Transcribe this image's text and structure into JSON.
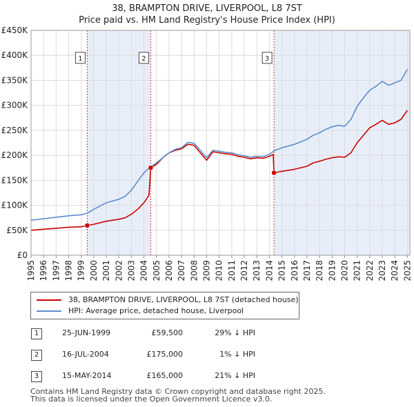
{
  "chart_data": {
    "type": "line",
    "title": "38, BRAMPTON DRIVE, LIVERPOOL, L8 7ST",
    "subtitle": "Price paid vs. HM Land Registry's House Price Index (HPI)",
    "xlabel": "",
    "ylabel": "",
    "xlim": [
      1995,
      2025.2
    ],
    "ylim": [
      0,
      450000
    ],
    "yticks": [
      0,
      50000,
      100000,
      150000,
      200000,
      250000,
      300000,
      350000,
      400000,
      450000
    ],
    "ytick_labels": [
      "£0",
      "£50K",
      "£100K",
      "£150K",
      "£200K",
      "£250K",
      "£300K",
      "£350K",
      "£400K",
      "£450K"
    ],
    "xticks": [
      "1995",
      "1996",
      "1997",
      "1998",
      "1999",
      "2000",
      "2001",
      "2002",
      "2003",
      "2004",
      "2005",
      "2006",
      "2007",
      "2008",
      "2009",
      "2010",
      "2011",
      "2012",
      "2013",
      "2014",
      "2015",
      "2016",
      "2017",
      "2018",
      "2019",
      "2020",
      "2021",
      "2022",
      "2023",
      "2024",
      "2025"
    ],
    "grid": true,
    "shaded_regions": [
      [
        1999.48,
        2004.54
      ],
      [
        2014.37,
        2025.2
      ]
    ],
    "series": [
      {
        "name": "38, BRAMPTON DRIVE, LIVERPOOL, L8 7ST (detached house)",
        "color": "#cc0000",
        "x": [
          1995,
          1996,
          1997,
          1998,
          1999,
          1999.48,
          2000,
          2001,
          2002,
          2002.5,
          2003,
          2003.5,
          2004,
          2004.4,
          2004.54,
          2005,
          2005.5,
          2006,
          2006.5,
          2007,
          2007.5,
          2008,
          2008.5,
          2009,
          2009.5,
          2010,
          2010.5,
          2011,
          2011.5,
          2012,
          2012.5,
          2013,
          2013.5,
          2014,
          2014.3,
          2014.37,
          2015,
          2016,
          2017,
          2017.5,
          2018,
          2018.5,
          2019,
          2019.5,
          2020,
          2020.5,
          2021,
          2021.5,
          2022,
          2022.5,
          2023,
          2023.5,
          2024,
          2024.5,
          2025
        ],
        "values": [
          50000,
          52000,
          54000,
          56000,
          57000,
          59500,
          62000,
          68000,
          72000,
          75000,
          82000,
          92000,
          105000,
          120000,
          175000,
          182000,
          195000,
          205000,
          210000,
          213000,
          222000,
          220000,
          205000,
          190000,
          207000,
          205000,
          203000,
          202000,
          198000,
          196000,
          193000,
          195000,
          194000,
          198000,
          202000,
          165000,
          168000,
          172000,
          178000,
          185000,
          188000,
          192000,
          195000,
          197000,
          196000,
          205000,
          225000,
          240000,
          255000,
          262000,
          270000,
          262000,
          265000,
          272000,
          290000
        ]
      },
      {
        "name": "HPI: Average price, detached house, Liverpool",
        "color": "#5b8dc9",
        "x": [
          1995,
          1996,
          1997,
          1998,
          1999,
          1999.48,
          2000,
          2001,
          2002,
          2002.5,
          2003,
          2003.5,
          2004,
          2004.54,
          2005,
          2005.5,
          2006,
          2006.5,
          2007,
          2007.5,
          2008,
          2008.5,
          2009,
          2009.5,
          2010,
          2010.5,
          2011,
          2011.5,
          2012,
          2012.5,
          2013,
          2013.5,
          2014,
          2014.37,
          2015,
          2016,
          2017,
          2017.5,
          2018,
          2018.5,
          2019,
          2019.5,
          2020,
          2020.5,
          2021,
          2021.5,
          2022,
          2022.5,
          2023,
          2023.5,
          2024,
          2024.5,
          2025
        ],
        "values": [
          70000,
          73000,
          76000,
          79000,
          81000,
          84000,
          92000,
          105000,
          112000,
          118000,
          130000,
          148000,
          165000,
          177000,
          185000,
          195000,
          205000,
          212000,
          215000,
          226000,
          224000,
          210000,
          195000,
          210000,
          208000,
          206000,
          205000,
          201000,
          199000,
          196000,
          198000,
          197000,
          202000,
          209000,
          215000,
          222000,
          232000,
          240000,
          245000,
          252000,
          257000,
          260000,
          258000,
          272000,
          298000,
          315000,
          330000,
          338000,
          348000,
          340000,
          345000,
          350000,
          372000
        ]
      }
    ],
    "sales": [
      {
        "label": "1",
        "x": 1999.48,
        "value": 59500
      },
      {
        "label": "2",
        "x": 2004.54,
        "value": 175000
      },
      {
        "label": "3",
        "x": 2014.37,
        "value": 165000
      }
    ],
    "marker_box_value": 395000
  },
  "legend": {
    "property_label": "38, BRAMPTON DRIVE, LIVERPOOL, L8 7ST (detached house)",
    "hpi_label": "HPI: Average price, detached house, Liverpool",
    "property_color": "#cc0000",
    "hpi_color": "#5b8dc9"
  },
  "transactions": [
    {
      "num": "1",
      "date": "25-JUN-1999",
      "price": "£59,500",
      "hpi": "29% ↓ HPI"
    },
    {
      "num": "2",
      "date": "16-JUL-2004",
      "price": "£175,000",
      "hpi": "1% ↓ HPI"
    },
    {
      "num": "3",
      "date": "15-MAY-2014",
      "price": "£165,000",
      "hpi": "21% ↓ HPI"
    }
  ],
  "footer": {
    "line1": "Contains HM Land Registry data © Crown copyright and database right 2025.",
    "line2": "This data is licensed under the Open Government Licence v3.0."
  }
}
